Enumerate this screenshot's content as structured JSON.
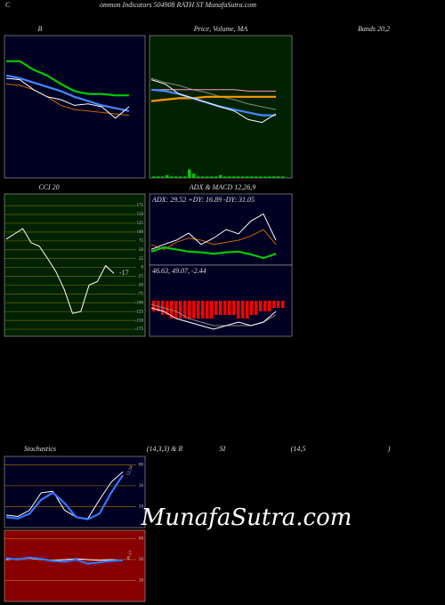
{
  "header": {
    "title_initial": "C",
    "title": "ommon Indicators 504908 RATH ST MunafaSutra.com",
    "watermark": "MunafaSutra.com"
  },
  "chart_data": [
    {
      "type": "line",
      "title_parts": [
        "B",
        "Bands 20,2"
      ],
      "background": "#000022",
      "ylim": [
        0,
        100
      ],
      "series": [
        {
          "color": "#00cc00",
          "values": [
            82,
            82,
            76,
            72,
            66,
            61,
            59,
            59,
            58,
            58
          ]
        },
        {
          "color": "#4488ff",
          "values": [
            72,
            70,
            67,
            64,
            61,
            57,
            54,
            51,
            49,
            47
          ]
        },
        {
          "color": "#cc6600",
          "values": [
            66,
            65,
            62,
            57,
            51,
            48,
            47,
            46,
            45,
            44
          ]
        },
        {
          "color": "#ffffff",
          "values": [
            70,
            69,
            62,
            57,
            55,
            51,
            52,
            50,
            42,
            50
          ]
        }
      ]
    },
    {
      "type": "line",
      "title_parts": [
        "Price, Volume, MA"
      ],
      "background": "#002200",
      "ylim": [
        0,
        100
      ],
      "series": [
        {
          "color": "#888888",
          "values": [
            70,
            67,
            65,
            62,
            60,
            57,
            55,
            52,
            50,
            48
          ]
        },
        {
          "color": "#ff99cc",
          "values": [
            62,
            62,
            62,
            62,
            62,
            62,
            62,
            61,
            61,
            61
          ]
        },
        {
          "color": "#ff9900",
          "values": [
            54,
            55,
            56,
            56,
            57,
            57,
            57,
            57,
            57,
            57
          ]
        },
        {
          "color": "#4488ff",
          "values": [
            62,
            61,
            59,
            56,
            53,
            50,
            48,
            46,
            44,
            44
          ]
        },
        {
          "color": "#ffffff",
          "values": [
            69,
            66,
            59,
            56,
            53,
            50,
            47,
            41,
            39,
            45
          ]
        }
      ],
      "volume": {
        "color": "#00cc00",
        "ylim": [
          0,
          100
        ],
        "values": [
          1,
          1,
          1,
          2,
          1,
          1,
          1,
          1,
          6,
          3,
          1,
          1,
          1,
          1,
          1,
          2,
          1,
          1,
          1,
          1,
          1,
          1,
          1,
          1,
          1,
          1,
          1,
          1,
          1,
          1
        ]
      }
    },
    {
      "type": "line",
      "title_parts": [
        "CCI 20"
      ],
      "background": "#002200",
      "ylim": [
        -195,
        208
      ],
      "yticks": [
        175,
        150,
        125,
        100,
        75,
        50,
        25,
        0,
        -25,
        -50,
        -75,
        -100,
        -125,
        -150,
        -175
      ],
      "grid_color": "#666600",
      "series": [
        {
          "color": "#ffffff",
          "values": [
            80,
            95,
            110,
            70,
            60,
            25,
            -12,
            -62,
            -130,
            -125,
            -50,
            -40,
            5,
            -17
          ],
          "value_label": "-17"
        }
      ]
    },
    {
      "type": "line",
      "title_parts": [
        "ADX  & MACD 12,26,9"
      ],
      "legend_text": "ADX: 29.52  +DY: 16.89 -DY: 31.05",
      "background": "#000022",
      "ylim": [
        0,
        100
      ],
      "series": [
        {
          "color": "#cc6600",
          "values": [
            29,
            22,
            32,
            38,
            35,
            29,
            32,
            35,
            41,
            50,
            29
          ]
        },
        {
          "color": "#ffffff",
          "values": [
            22,
            29,
            35,
            45,
            29,
            38,
            50,
            44,
            62,
            72,
            35
          ]
        },
        {
          "color": "#00cc00",
          "values": [
            19,
            25,
            22,
            19,
            18,
            16,
            18,
            19,
            15,
            10,
            16
          ]
        }
      ]
    },
    {
      "type": "macd",
      "legend_text": "46.63, 49.07, -2.44",
      "background": "#000022",
      "ylim": [
        -10,
        10
      ],
      "histogram": {
        "color": "#ff0000",
        "values": [
          -3,
          -3,
          -4,
          -4,
          -5,
          -5,
          -5,
          -5,
          -5,
          -5,
          -5,
          -5,
          -5,
          -5,
          -4,
          -4,
          -4,
          -4,
          -4,
          -5,
          -5,
          -5,
          -4,
          -4,
          -3,
          -3,
          -3,
          -2,
          -2,
          -2
        ]
      },
      "series": [
        {
          "color": "#888888",
          "values": [
            -1,
            -2,
            -3,
            -5,
            -6,
            -7,
            -7,
            -7,
            -7,
            -6,
            -4
          ]
        },
        {
          "color": "#ffffff",
          "values": [
            -2,
            -3,
            -5,
            -6,
            -7,
            -8,
            -7,
            -6,
            -7,
            -6,
            -3
          ]
        }
      ]
    },
    {
      "type": "line",
      "title_parts": [
        "Stochastics",
        "(14,3,3) & R",
        "SI",
        "(14,5",
        ")"
      ],
      "background": "#000022",
      "ylim": [
        -10,
        92
      ],
      "yticks": [
        80,
        50,
        20
      ],
      "grid_color": "#996600",
      "series": [
        {
          "color": "#ffffff",
          "values": [
            8,
            6,
            15,
            40,
            42,
            15,
            5,
            3,
            30,
            55,
            70
          ]
        },
        {
          "color": "#3377ff",
          "values": [
            5,
            3,
            10,
            30,
            40,
            25,
            5,
            2,
            10,
            40,
            65
          ],
          "value_label": "52.24"
        }
      ]
    },
    {
      "type": "line",
      "background": "#880000",
      "ylim": [
        -10,
        92
      ],
      "yticks": [
        80,
        50,
        20
      ],
      "grid_color": "#bb6600",
      "series": [
        {
          "color": "#ffffff",
          "values": [
            50,
            51,
            52,
            50,
            49,
            50,
            51,
            50,
            49,
            50,
            49
          ]
        },
        {
          "color": "#3377ff",
          "values": [
            52,
            50,
            53,
            51,
            48,
            47,
            50,
            44,
            46,
            48,
            49
          ],
          "value_label": "49.17"
        }
      ]
    }
  ]
}
